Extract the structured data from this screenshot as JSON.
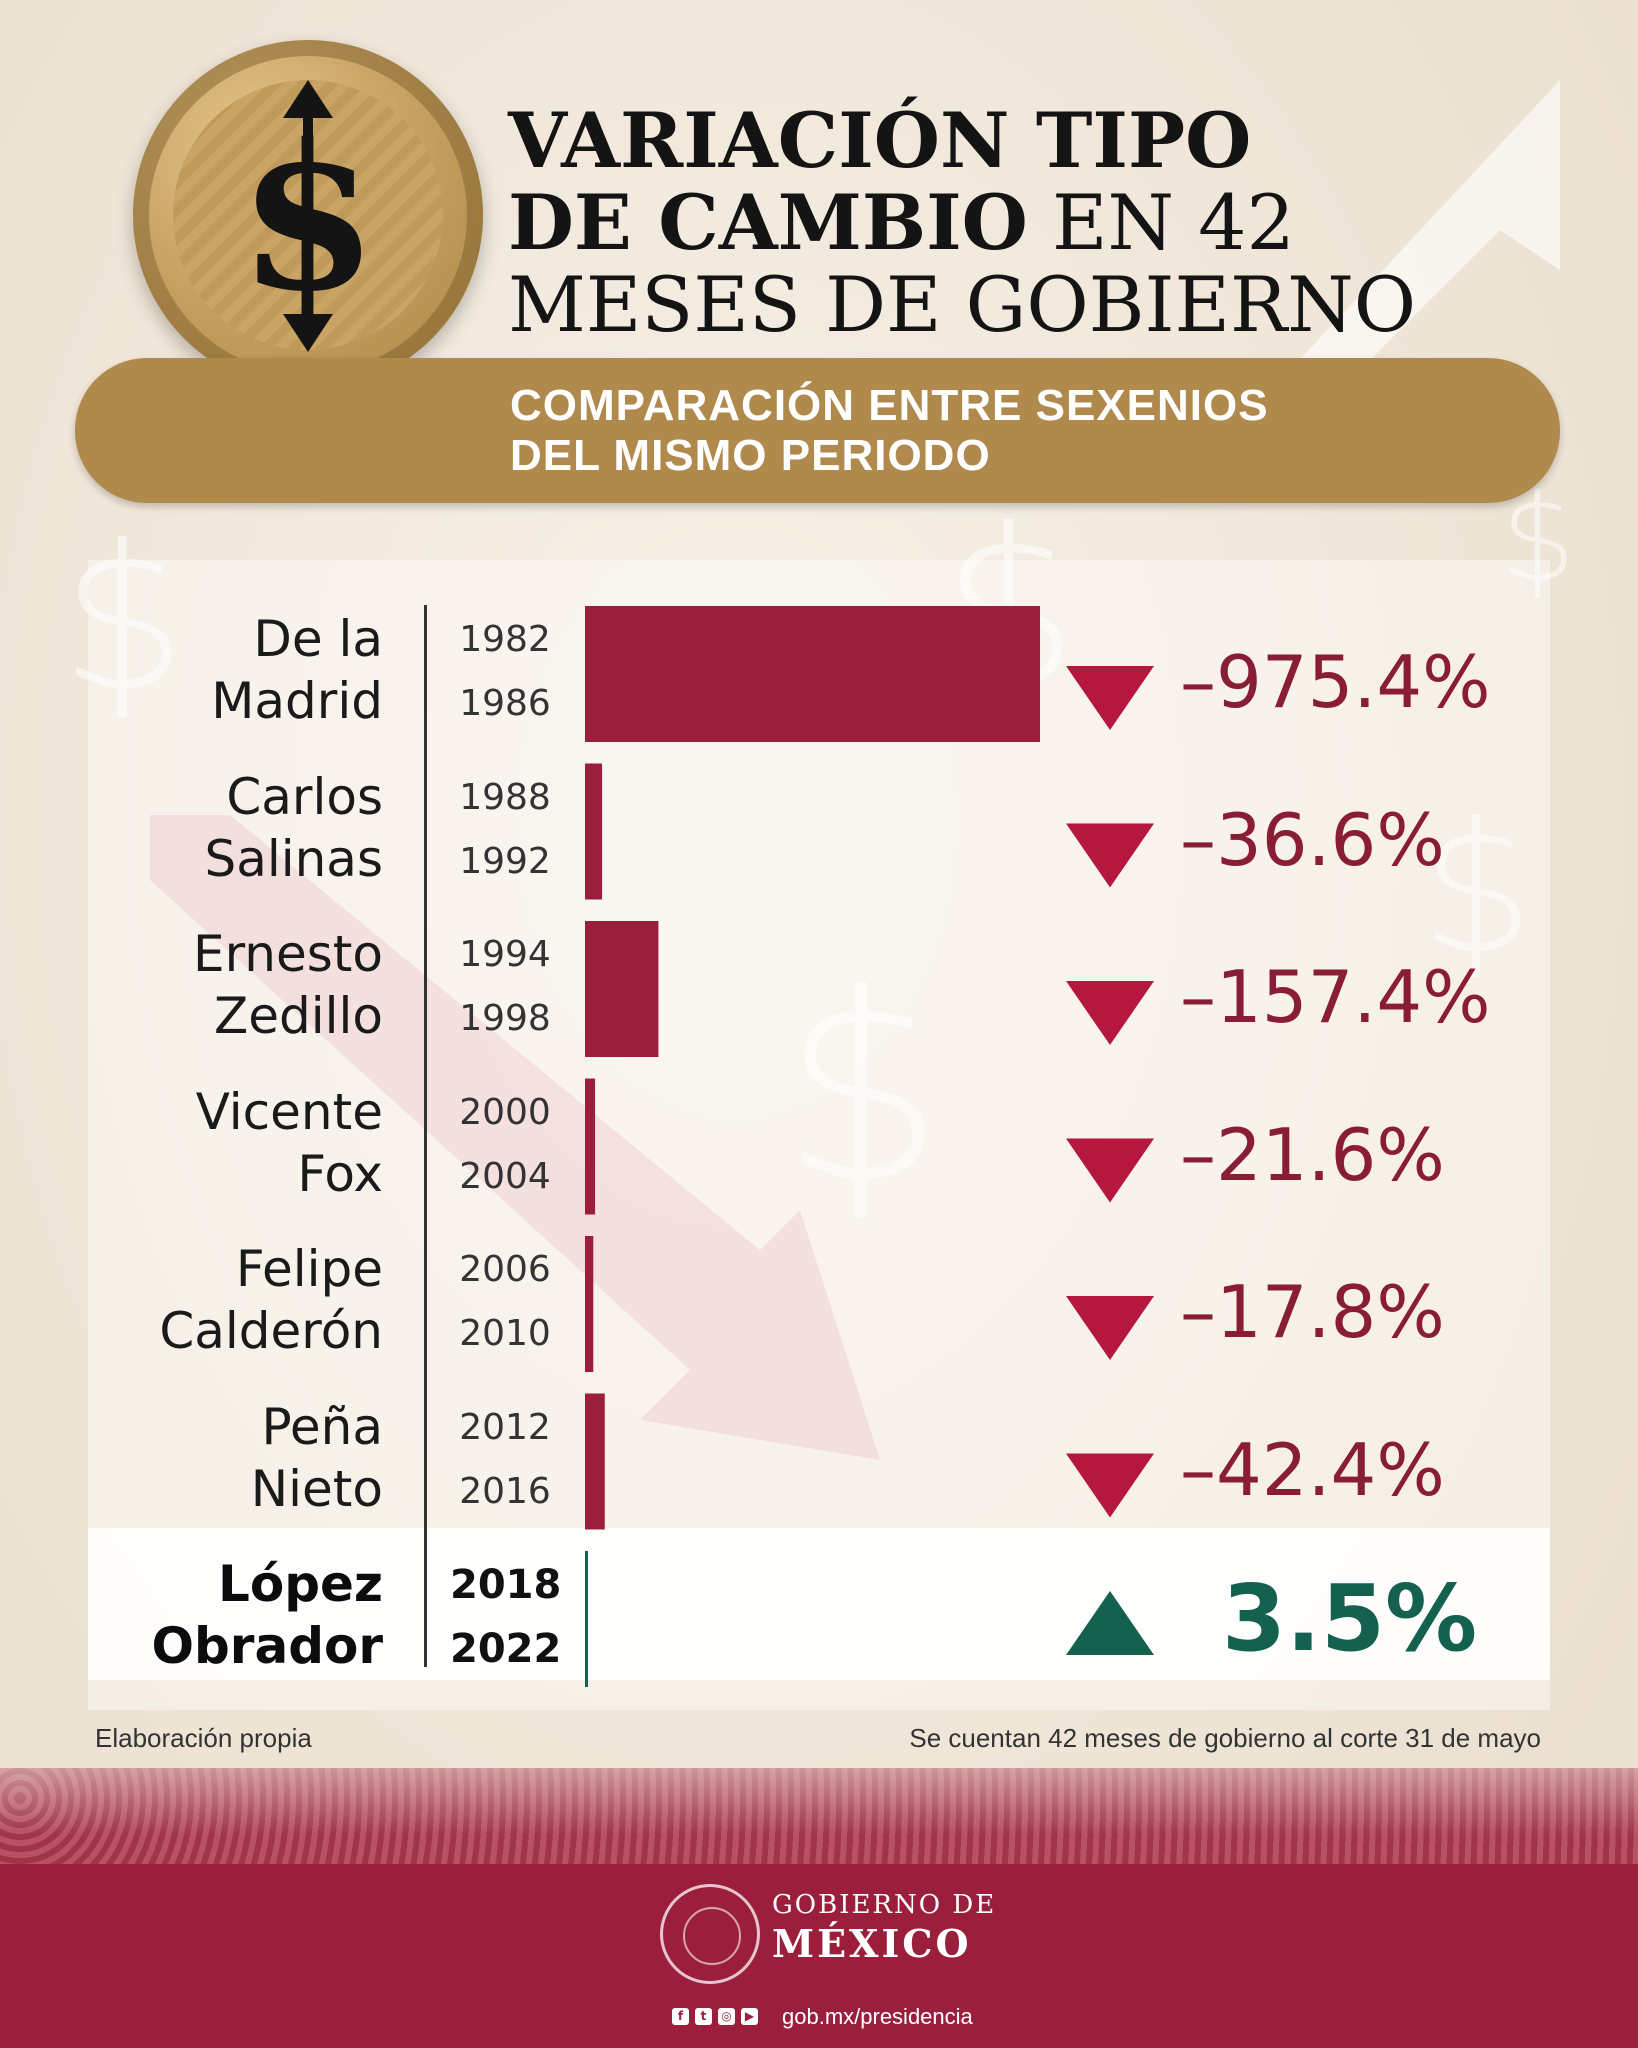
{
  "title": {
    "line1": "VARIACIÓN TIPO",
    "line2_bold": "DE CAMBIO",
    "line2_thin": "EN 42",
    "line3": "MESES DE GOBIERNO"
  },
  "banner": {
    "line1": "COMPARACIÓN ENTRE SEXENIOS",
    "line2": "DEL MISMO PERIODO"
  },
  "coin": {
    "symbol": "$"
  },
  "chart_data": {
    "type": "bar",
    "orientation": "horizontal",
    "rows": [
      {
        "name_line1": "De la",
        "name_line2": "Madrid",
        "year_start": "1982",
        "year_end": "1986",
        "label": "–975.4%",
        "value": -975.4,
        "direction": "down"
      },
      {
        "name_line1": "Carlos",
        "name_line2": "Salinas",
        "year_start": "1988",
        "year_end": "1992",
        "label": "–36.6%",
        "value": -36.6,
        "direction": "down"
      },
      {
        "name_line1": "Ernesto",
        "name_line2": "Zedillo",
        "year_start": "1994",
        "year_end": "1998",
        "label": "–157.4%",
        "value": -157.4,
        "direction": "down"
      },
      {
        "name_line1": "Vicente",
        "name_line2": "Fox",
        "year_start": "2000",
        "year_end": "2004",
        "label": "–21.6%",
        "value": -21.6,
        "direction": "down"
      },
      {
        "name_line1": "Felipe",
        "name_line2": "Calderón",
        "year_start": "2006",
        "year_end": "2010",
        "label": "–17.8%",
        "value": -17.8,
        "direction": "down"
      },
      {
        "name_line1": "Peña",
        "name_line2": "Nieto",
        "year_start": "2012",
        "year_end": "2016",
        "label": "–42.4%",
        "value": -42.4,
        "direction": "down"
      },
      {
        "name_line1": "López",
        "name_line2": "Obrador",
        "year_start": "2018",
        "year_end": "2022",
        "label": "3.5%",
        "value": 3.5,
        "direction": "up"
      }
    ],
    "max_abs_value": 975.4,
    "colors": {
      "negative_bar": "#9b1f3d",
      "negative_text": "#8a1d36",
      "negative_marker": "#b5173f",
      "positive": "#13614e"
    }
  },
  "notes": {
    "left": "Elaboración propia",
    "right": "Se cuentan 42 meses de gobierno al corte 31 de mayo"
  },
  "footer": {
    "org_line1": "GOBIERNO DE",
    "org_line2": "MÉXICO",
    "url": "gob.mx/presidencia",
    "social_icons": [
      "facebook-icon",
      "twitter-icon",
      "instagram-icon",
      "youtube-icon"
    ]
  }
}
